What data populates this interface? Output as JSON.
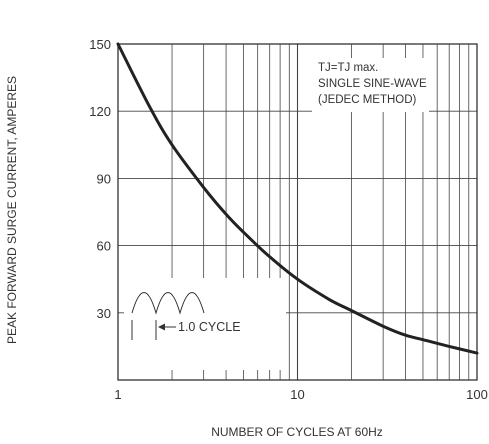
{
  "chart_data": {
    "type": "line",
    "title": "",
    "xlabel": "NUMBER OF CYCLES AT 60Hz",
    "ylabel": "PEAK FORWARD SURGE CURRENT, AMPERES",
    "x_scale": "log",
    "xlim": [
      1,
      100
    ],
    "ylim": [
      0,
      150
    ],
    "x_ticks": [
      {
        "value": 1,
        "label": "1"
      },
      {
        "value": 10,
        "label": "10"
      },
      {
        "value": 100,
        "label": "100"
      }
    ],
    "y_ticks": [
      {
        "value": 30,
        "label": "30"
      },
      {
        "value": 60,
        "label": "60"
      },
      {
        "value": 90,
        "label": "90"
      },
      {
        "value": 120,
        "label": "120"
      },
      {
        "value": 150,
        "label": "150"
      }
    ],
    "grid": true,
    "series": [
      {
        "color": "#222222",
        "x": [
          1,
          1.5,
          2,
          3,
          4,
          5,
          7,
          10,
          15,
          20,
          30,
          40,
          50,
          70,
          100
        ],
        "y": [
          150,
          122,
          105,
          86,
          74,
          66,
          55,
          45,
          36,
          31,
          24,
          20,
          18,
          15,
          12
        ]
      }
    ],
    "annotations": {
      "conditions": [
        "TJ=TJ max.",
        "SINGLE SINE-WAVE",
        "(JEDEC METHOD)"
      ],
      "cycle_label": "1.0 CYCLE"
    }
  }
}
